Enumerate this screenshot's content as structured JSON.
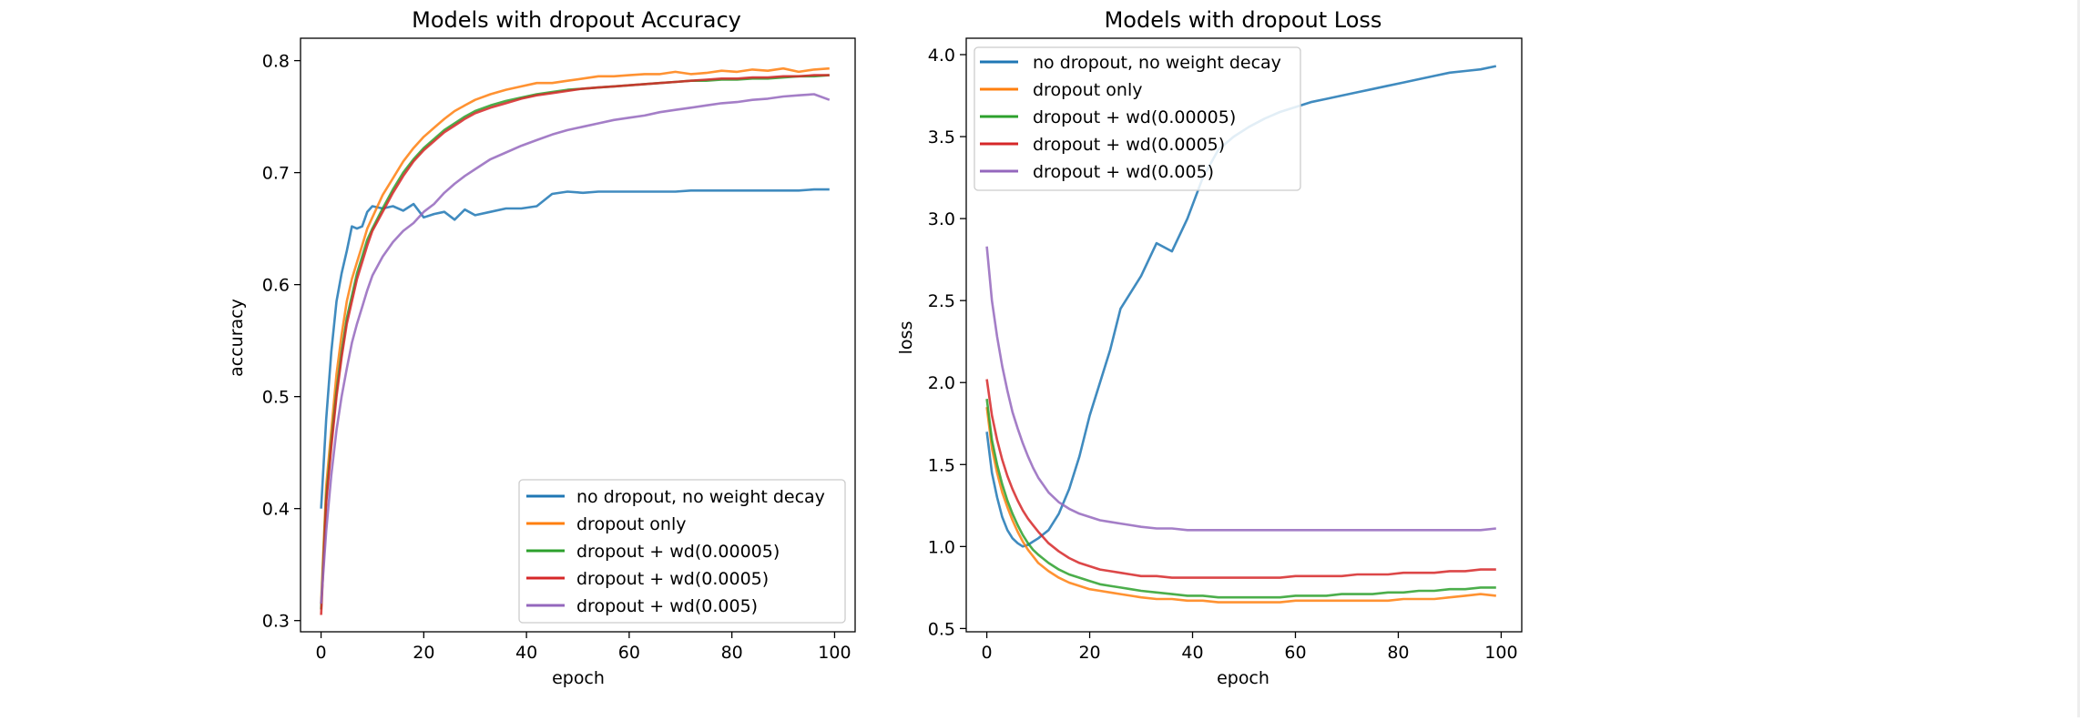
{
  "figure": {
    "background": "#ffffff"
  },
  "chart_data": [
    {
      "type": "line",
      "title": "Models with dropout Accuracy",
      "xlabel": "epoch",
      "ylabel": "accuracy",
      "xlim": [
        -4,
        104
      ],
      "ylim": [
        0.29,
        0.82
      ],
      "xticks": [
        0,
        20,
        40,
        60,
        80,
        100
      ],
      "xtick_labels": [
        "0",
        "20",
        "40",
        "60",
        "80",
        "100"
      ],
      "yticks": [
        0.3,
        0.4,
        0.5,
        0.6,
        0.7,
        0.8
      ],
      "ytick_labels": [
        "0.3",
        "0.4",
        "0.5",
        "0.6",
        "0.7",
        "0.8"
      ],
      "grid": false,
      "legend_position": "lower-right",
      "x": [
        0,
        1,
        2,
        3,
        4,
        5,
        6,
        7,
        8,
        9,
        10,
        12,
        14,
        16,
        18,
        20,
        22,
        24,
        26,
        28,
        30,
        33,
        36,
        39,
        42,
        45,
        48,
        51,
        54,
        57,
        60,
        63,
        66,
        69,
        72,
        75,
        78,
        81,
        84,
        87,
        90,
        93,
        96,
        99
      ],
      "series": [
        {
          "name": "no dropout, no weight decay",
          "color": "#1f77b4",
          "values": [
            0.4,
            0.48,
            0.54,
            0.585,
            0.61,
            0.63,
            0.652,
            0.65,
            0.652,
            0.665,
            0.67,
            0.668,
            0.67,
            0.666,
            0.672,
            0.66,
            0.663,
            0.665,
            0.658,
            0.667,
            0.662,
            0.665,
            0.668,
            0.668,
            0.67,
            0.681,
            0.683,
            0.682,
            0.683,
            0.683,
            0.683,
            0.683,
            0.683,
            0.683,
            0.684,
            0.684,
            0.684,
            0.684,
            0.684,
            0.684,
            0.684,
            0.684,
            0.685,
            0.685
          ]
        },
        {
          "name": "dropout only",
          "color": "#ff7f0e",
          "values": [
            0.315,
            0.42,
            0.47,
            0.52,
            0.555,
            0.585,
            0.605,
            0.62,
            0.635,
            0.65,
            0.66,
            0.68,
            0.695,
            0.71,
            0.722,
            0.732,
            0.74,
            0.748,
            0.755,
            0.76,
            0.765,
            0.77,
            0.774,
            0.777,
            0.78,
            0.78,
            0.782,
            0.784,
            0.786,
            0.786,
            0.787,
            0.788,
            0.788,
            0.79,
            0.788,
            0.789,
            0.791,
            0.79,
            0.792,
            0.791,
            0.793,
            0.79,
            0.792,
            0.793
          ]
        },
        {
          "name": "dropout + wd(0.00005)",
          "color": "#2ca02c",
          "values": [
            0.31,
            0.41,
            0.46,
            0.505,
            0.54,
            0.57,
            0.59,
            0.61,
            0.625,
            0.64,
            0.65,
            0.668,
            0.685,
            0.7,
            0.712,
            0.722,
            0.73,
            0.738,
            0.744,
            0.75,
            0.755,
            0.76,
            0.764,
            0.767,
            0.77,
            0.772,
            0.774,
            0.775,
            0.776,
            0.777,
            0.778,
            0.779,
            0.78,
            0.781,
            0.782,
            0.782,
            0.783,
            0.783,
            0.784,
            0.784,
            0.785,
            0.786,
            0.786,
            0.787
          ]
        },
        {
          "name": "dropout + wd(0.0005)",
          "color": "#d62728",
          "values": [
            0.305,
            0.405,
            0.455,
            0.5,
            0.535,
            0.565,
            0.585,
            0.605,
            0.62,
            0.635,
            0.648,
            0.665,
            0.682,
            0.697,
            0.71,
            0.72,
            0.728,
            0.736,
            0.742,
            0.748,
            0.753,
            0.758,
            0.762,
            0.766,
            0.769,
            0.771,
            0.773,
            0.775,
            0.776,
            0.777,
            0.778,
            0.779,
            0.78,
            0.781,
            0.782,
            0.783,
            0.784,
            0.784,
            0.785,
            0.785,
            0.786,
            0.786,
            0.787,
            0.787
          ]
        },
        {
          "name": "dropout + wd(0.005)",
          "color": "#9467bd",
          "values": [
            0.315,
            0.38,
            0.43,
            0.47,
            0.5,
            0.525,
            0.548,
            0.565,
            0.58,
            0.595,
            0.608,
            0.625,
            0.638,
            0.648,
            0.655,
            0.665,
            0.672,
            0.682,
            0.69,
            0.697,
            0.703,
            0.712,
            0.718,
            0.724,
            0.729,
            0.734,
            0.738,
            0.741,
            0.744,
            0.747,
            0.749,
            0.751,
            0.754,
            0.756,
            0.758,
            0.76,
            0.762,
            0.763,
            0.765,
            0.766,
            0.768,
            0.769,
            0.77,
            0.765
          ]
        }
      ]
    },
    {
      "type": "line",
      "title": "Models with dropout Loss",
      "xlabel": "epoch",
      "ylabel": "loss",
      "xlim": [
        -4,
        104
      ],
      "ylim": [
        0.48,
        4.1
      ],
      "xticks": [
        0,
        20,
        40,
        60,
        80,
        100
      ],
      "xtick_labels": [
        "0",
        "20",
        "40",
        "60",
        "80",
        "100"
      ],
      "yticks": [
        0.5,
        1.0,
        1.5,
        2.0,
        2.5,
        3.0,
        3.5,
        4.0
      ],
      "ytick_labels": [
        "0.5",
        "1.0",
        "1.5",
        "2.0",
        "2.5",
        "3.0",
        "3.5",
        "4.0"
      ],
      "grid": false,
      "legend_position": "top-left",
      "x": [
        0,
        1,
        2,
        3,
        4,
        5,
        6,
        7,
        8,
        9,
        10,
        12,
        14,
        16,
        18,
        20,
        22,
        24,
        26,
        28,
        30,
        33,
        36,
        39,
        42,
        45,
        48,
        51,
        54,
        57,
        60,
        63,
        66,
        69,
        72,
        75,
        78,
        81,
        84,
        87,
        90,
        93,
        96,
        99
      ],
      "series": [
        {
          "name": "no dropout, no weight decay",
          "color": "#1f77b4",
          "values": [
            1.7,
            1.45,
            1.3,
            1.18,
            1.1,
            1.05,
            1.02,
            1.0,
            1.01,
            1.03,
            1.05,
            1.1,
            1.2,
            1.35,
            1.55,
            1.8,
            2.0,
            2.2,
            2.45,
            2.55,
            2.65,
            2.85,
            2.8,
            3.0,
            3.25,
            3.42,
            3.5,
            3.56,
            3.61,
            3.65,
            3.68,
            3.71,
            3.73,
            3.75,
            3.77,
            3.79,
            3.81,
            3.83,
            3.85,
            3.87,
            3.89,
            3.9,
            3.91,
            3.93
          ]
        },
        {
          "name": "dropout only",
          "color": "#ff7f0e",
          "values": [
            1.85,
            1.6,
            1.45,
            1.33,
            1.24,
            1.16,
            1.09,
            1.03,
            0.98,
            0.94,
            0.9,
            0.85,
            0.81,
            0.78,
            0.76,
            0.74,
            0.73,
            0.72,
            0.71,
            0.7,
            0.69,
            0.68,
            0.68,
            0.67,
            0.67,
            0.66,
            0.66,
            0.66,
            0.66,
            0.66,
            0.67,
            0.67,
            0.67,
            0.67,
            0.67,
            0.67,
            0.67,
            0.68,
            0.68,
            0.68,
            0.69,
            0.7,
            0.71,
            0.7
          ]
        },
        {
          "name": "dropout + wd(0.00005)",
          "color": "#2ca02c",
          "values": [
            1.9,
            1.65,
            1.5,
            1.38,
            1.28,
            1.2,
            1.13,
            1.07,
            1.02,
            0.98,
            0.95,
            0.9,
            0.86,
            0.83,
            0.81,
            0.79,
            0.77,
            0.76,
            0.75,
            0.74,
            0.73,
            0.72,
            0.71,
            0.7,
            0.7,
            0.69,
            0.69,
            0.69,
            0.69,
            0.69,
            0.7,
            0.7,
            0.7,
            0.71,
            0.71,
            0.71,
            0.72,
            0.72,
            0.73,
            0.73,
            0.74,
            0.74,
            0.75,
            0.75
          ]
        },
        {
          "name": "dropout + wd(0.0005)",
          "color": "#d62728",
          "values": [
            2.02,
            1.8,
            1.65,
            1.53,
            1.43,
            1.35,
            1.28,
            1.22,
            1.17,
            1.13,
            1.09,
            1.02,
            0.97,
            0.93,
            0.9,
            0.88,
            0.86,
            0.85,
            0.84,
            0.83,
            0.82,
            0.82,
            0.81,
            0.81,
            0.81,
            0.81,
            0.81,
            0.81,
            0.81,
            0.81,
            0.82,
            0.82,
            0.82,
            0.82,
            0.83,
            0.83,
            0.83,
            0.84,
            0.84,
            0.84,
            0.85,
            0.85,
            0.86,
            0.86
          ]
        },
        {
          "name": "dropout + wd(0.005)",
          "color": "#9467bd",
          "values": [
            2.83,
            2.5,
            2.28,
            2.1,
            1.95,
            1.82,
            1.72,
            1.63,
            1.55,
            1.48,
            1.42,
            1.33,
            1.27,
            1.23,
            1.2,
            1.18,
            1.16,
            1.15,
            1.14,
            1.13,
            1.12,
            1.11,
            1.11,
            1.1,
            1.1,
            1.1,
            1.1,
            1.1,
            1.1,
            1.1,
            1.1,
            1.1,
            1.1,
            1.1,
            1.1,
            1.1,
            1.1,
            1.1,
            1.1,
            1.1,
            1.1,
            1.1,
            1.1,
            1.11
          ]
        }
      ]
    }
  ]
}
